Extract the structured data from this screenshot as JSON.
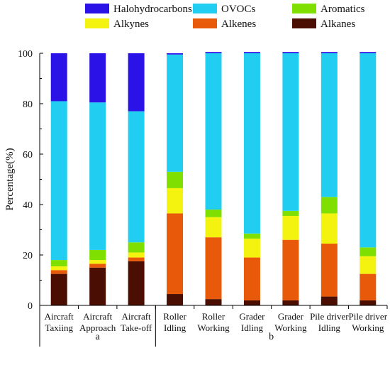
{
  "chart_data": {
    "type": "bar",
    "stacked": true,
    "ylabel": "Percentage(%)",
    "ylim": [
      0,
      100
    ],
    "y_ticks": [
      0,
      20,
      40,
      60,
      80,
      100
    ],
    "legend_position": "top",
    "groups": [
      {
        "label": "a",
        "categories": [
          0,
          1,
          2
        ]
      },
      {
        "label": "b",
        "categories": [
          3,
          4,
          5,
          6,
          7,
          8
        ]
      }
    ],
    "categories": [
      [
        "Aircraft",
        "Taxiing"
      ],
      [
        "Aircraft",
        "Approach"
      ],
      [
        "Aircraft",
        "Take-off"
      ],
      [
        "Roller",
        "Idling"
      ],
      [
        "Roller",
        "Working"
      ],
      [
        "Grader",
        "Idling"
      ],
      [
        "Grader",
        "Working"
      ],
      [
        "Pile driver",
        "Idling"
      ],
      [
        "Pile driver",
        "Working"
      ]
    ],
    "series": [
      {
        "name": "Alkanes",
        "color": "#4a0f02",
        "values": [
          12.5,
          15,
          17.5,
          4.5,
          2.5,
          2,
          2,
          3.5,
          2
        ]
      },
      {
        "name": "Alkenes",
        "color": "#e85a0a",
        "values": [
          1.5,
          1.5,
          1.5,
          32,
          24.5,
          17,
          24,
          21,
          10.5
        ]
      },
      {
        "name": "Alkynes",
        "color": "#f3f30f",
        "values": [
          1.5,
          1.5,
          2,
          10,
          8,
          7.5,
          9.5,
          12,
          7
        ]
      },
      {
        "name": "Aromatics",
        "color": "#7fe000",
        "values": [
          2.5,
          4,
          4,
          6.5,
          3,
          2,
          2,
          6.5,
          3.5
        ]
      },
      {
        "name": "OVOCs",
        "color": "#22cdf2",
        "values": [
          63,
          58.5,
          52,
          46.5,
          62,
          71.5,
          62.5,
          57,
          77
        ]
      },
      {
        "name": "Halohydrocarbons",
        "color": "#2b12e6",
        "values": [
          19,
          19.5,
          23,
          0.5,
          0.5,
          0.5,
          0.5,
          0.5,
          0.5
        ]
      }
    ],
    "legend": [
      {
        "series": "Halohydrocarbons",
        "row": 0,
        "col": 0
      },
      {
        "series": "OVOCs",
        "row": 0,
        "col": 1
      },
      {
        "series": "Aromatics",
        "row": 0,
        "col": 2
      },
      {
        "series": "Alkynes",
        "row": 1,
        "col": 0
      },
      {
        "series": "Alkenes",
        "row": 1,
        "col": 1
      },
      {
        "series": "Alkanes",
        "row": 1,
        "col": 2
      }
    ]
  }
}
